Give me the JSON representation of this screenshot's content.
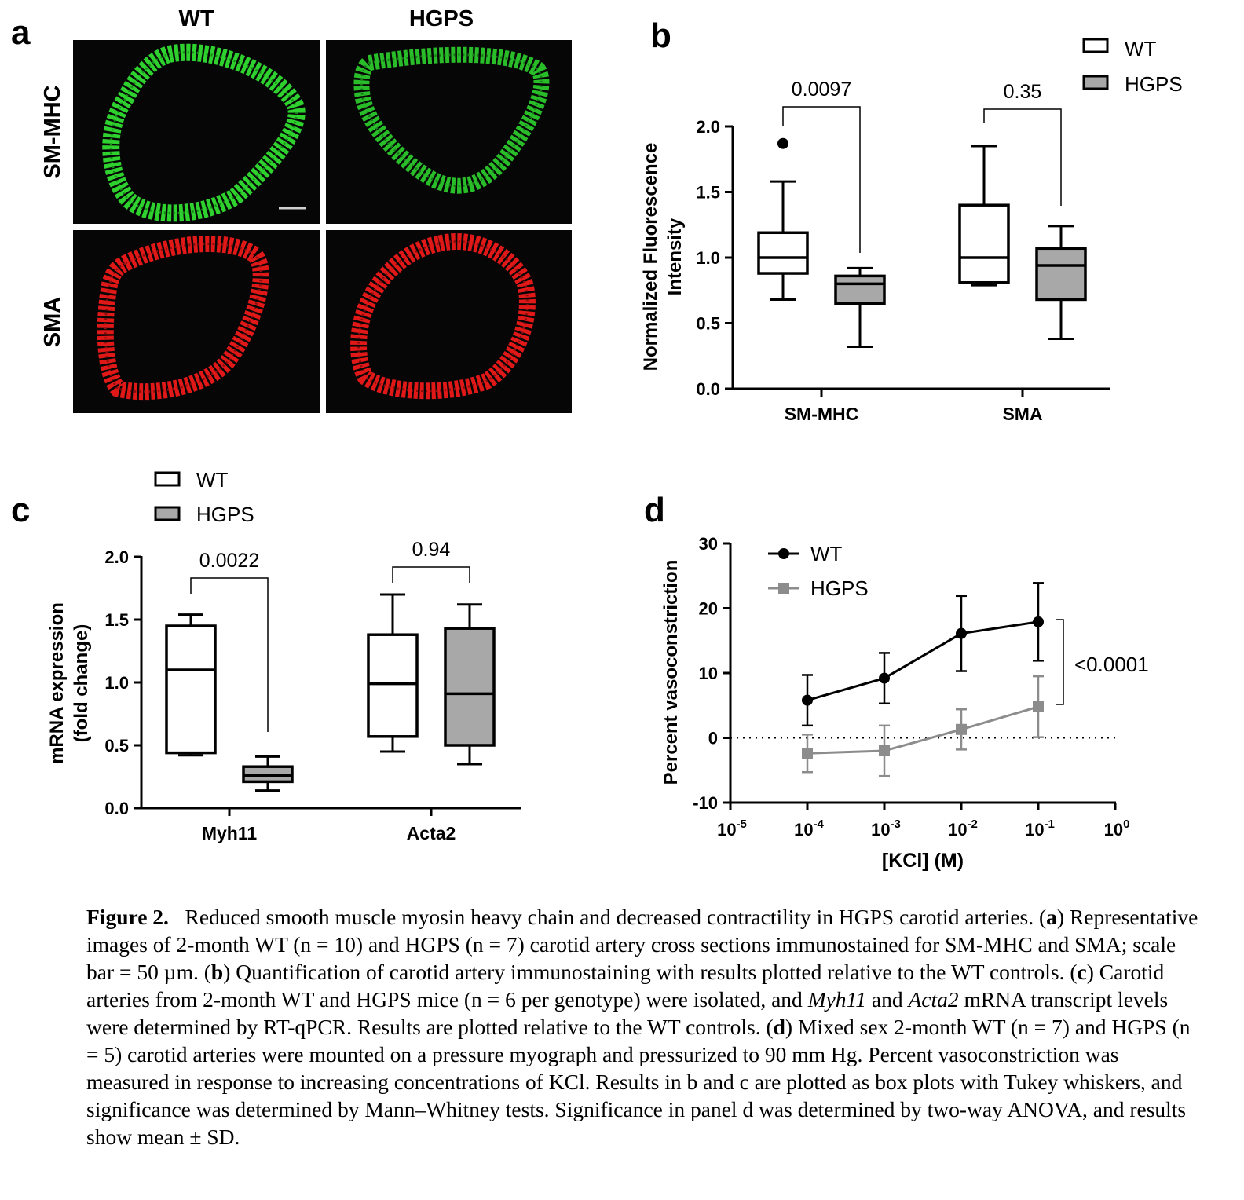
{
  "panel_a": {
    "letter": "a",
    "col_labels": [
      "WT",
      "HGPS"
    ],
    "row_labels": [
      "SM-MHC",
      "SMA"
    ],
    "colors": {
      "smmhc": "#2fd12f",
      "sma": "#e01818",
      "background": "#060606",
      "scale_bar": "#cfcfcf"
    }
  },
  "chart_data": [
    {
      "panel": "b",
      "type": "box",
      "ylabel": [
        "Normalized Fluorescence",
        "Intensity"
      ],
      "ylim": [
        0,
        2
      ],
      "yticks": [
        "0.0",
        "0.5",
        "1.0",
        "1.5",
        "2.0"
      ],
      "categories": [
        "SM-MHC",
        "SMA"
      ],
      "legend": [
        "WT",
        "HGPS"
      ],
      "legend_position": "top-right",
      "series": [
        {
          "name": "WT",
          "fill": "#ffffff",
          "boxes": [
            {
              "min": 0.68,
              "q1": 0.88,
              "median": 1.0,
              "q3": 1.19,
              "max": 1.58,
              "outliers": [
                1.87
              ]
            },
            {
              "min": 0.79,
              "q1": 0.81,
              "median": 1.0,
              "q3": 1.4,
              "max": 1.85,
              "outliers": []
            }
          ]
        },
        {
          "name": "HGPS",
          "fill": "#a8a8a8",
          "boxes": [
            {
              "min": 0.32,
              "q1": 0.65,
              "median": 0.8,
              "q3": 0.86,
              "max": 0.92,
              "outliers": []
            },
            {
              "min": 0.38,
              "q1": 0.68,
              "median": 0.94,
              "q3": 1.07,
              "max": 1.24,
              "outliers": []
            }
          ]
        }
      ],
      "annotations": [
        "0.0097",
        "0.35"
      ]
    },
    {
      "panel": "c",
      "type": "box",
      "ylabel": [
        "mRNA expression",
        "(fold change)"
      ],
      "ylim": [
        0,
        2
      ],
      "yticks": [
        "0.0",
        "0.5",
        "1.0",
        "1.5",
        "2.0"
      ],
      "categories": [
        "Myh11",
        "Acta2"
      ],
      "legend": [
        "WT",
        "HGPS"
      ],
      "legend_position": "top-left",
      "series": [
        {
          "name": "WT",
          "fill": "#ffffff",
          "boxes": [
            {
              "min": 0.42,
              "q1": 0.44,
              "median": 1.1,
              "q3": 1.45,
              "max": 1.54,
              "outliers": []
            },
            {
              "min": 0.45,
              "q1": 0.57,
              "median": 0.99,
              "q3": 1.38,
              "max": 1.7,
              "outliers": []
            }
          ]
        },
        {
          "name": "HGPS",
          "fill": "#a8a8a8",
          "boxes": [
            {
              "min": 0.14,
              "q1": 0.21,
              "median": 0.26,
              "q3": 0.33,
              "max": 0.41,
              "outliers": []
            },
            {
              "min": 0.35,
              "q1": 0.5,
              "median": 0.91,
              "q3": 1.43,
              "max": 1.62,
              "outliers": []
            }
          ]
        }
      ],
      "annotations": [
        "0.0022",
        "0.94"
      ]
    },
    {
      "panel": "d",
      "type": "line",
      "xscale": "log",
      "xlabel": "[KCl] (M)",
      "ylabel": "Percent vasoconstriction",
      "xlim": [
        1e-05,
        1
      ],
      "ylim": [
        -10,
        30
      ],
      "yticks": [
        "-10",
        "0",
        "10",
        "20",
        "30"
      ],
      "xticks": [
        {
          "base": "10",
          "exp": "-5"
        },
        {
          "base": "10",
          "exp": "-4"
        },
        {
          "base": "10",
          "exp": "-3"
        },
        {
          "base": "10",
          "exp": "-2"
        },
        {
          "base": "10",
          "exp": "-1"
        },
        {
          "base": "10",
          "exp": "0"
        }
      ],
      "x": [
        0.0001,
        0.001,
        0.01,
        0.1
      ],
      "series": [
        {
          "name": "WT",
          "color": "#000000",
          "marker": "circle",
          "y": [
            5.8,
            9.2,
            16.1,
            17.9
          ],
          "sd": [
            3.9,
            3.9,
            5.8,
            6.0
          ]
        },
        {
          "name": "HGPS",
          "color": "#8c8c8c",
          "marker": "square",
          "y": [
            -2.4,
            -2.0,
            1.3,
            4.8
          ],
          "sd": [
            2.9,
            3.9,
            3.1,
            4.7
          ]
        }
      ],
      "reference_line_y": 0,
      "legend_position": "top-left",
      "annotations": [
        "<0.0001"
      ]
    }
  ],
  "caption": {
    "figure_label": "Figure 2.",
    "title": "Reduced smooth muscle myosin heavy chain and decreased contractility in HGPS carotid arteries.",
    "s_a": "Representative images of 2-month WT (n = 10) and HGPS (n = 7) carotid artery cross sections immunostained for SM-MHC and SMA; scale bar = 50 µm.",
    "s_b": "Quantification of carotid artery immunostaining with results plotted relative to the WT controls.",
    "s_c_pre": "Carotid arteries from 2-month WT and HGPS mice (n = 6 per genotype) were isolated, and",
    "s_c_gene1": "Myh11",
    "s_c_and": "and",
    "s_c_gene2": "Acta2",
    "s_c_post": "mRNA transcript levels were determined by RT-qPCR. Results are plotted relative to the WT controls.",
    "s_d": "Mixed sex 2-month WT (n = 7) and HGPS (n = 5) carotid arteries were mounted on a pressure myograph and pressurized to 90 mm Hg. Percent vasoconstriction was measured in response to increasing concentrations of KCl. Results in b and c are plotted as box plots with Tukey whiskers, and significance was determined by Mann–Whitney tests. Significance in panel d was determined by two-way ANOVA, and results show mean ± SD.",
    "letters": [
      "a",
      "b",
      "c",
      "d"
    ]
  }
}
